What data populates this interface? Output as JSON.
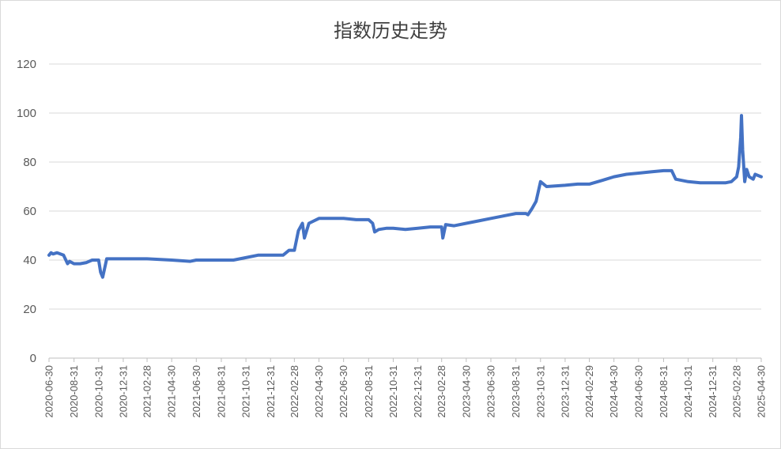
{
  "chart_data": {
    "type": "line",
    "title": "指数历史走势",
    "ylim": [
      0,
      120
    ],
    "yticks": [
      0,
      20,
      40,
      60,
      80,
      100,
      120
    ],
    "xlim": [
      "2020-06-30",
      "2025-04-30"
    ],
    "xticks": [
      "2020-06-30",
      "2020-08-31",
      "2020-10-31",
      "2020-12-31",
      "2021-02-28",
      "2021-04-30",
      "2021-06-30",
      "2021-08-31",
      "2021-10-31",
      "2021-12-31",
      "2022-02-28",
      "2022-04-30",
      "2022-06-30",
      "2022-08-31",
      "2022-10-31",
      "2022-12-31",
      "2023-02-28",
      "2023-04-30",
      "2023-06-30",
      "2023-08-31",
      "2023-10-31",
      "2023-12-31",
      "2024-02-29",
      "2024-04-30",
      "2024-06-30",
      "2024-08-31",
      "2024-10-31",
      "2024-12-31",
      "2025-02-28",
      "2025-04-30"
    ],
    "grid": true,
    "legend": "none",
    "color": "#4472c4",
    "series": [
      {
        "x": [
          "2020-06-30",
          "2020-07-05",
          "2020-07-10",
          "2020-07-20",
          "2020-08-05",
          "2020-08-15",
          "2020-08-20",
          "2020-08-31",
          "2020-09-15",
          "2020-10-01",
          "2020-10-15",
          "2020-10-31",
          "2020-11-05",
          "2020-11-10",
          "2020-11-20",
          "2020-12-31",
          "2021-01-31",
          "2021-02-28",
          "2021-04-30",
          "2021-06-15",
          "2021-06-30",
          "2021-08-31",
          "2021-09-30",
          "2021-10-31",
          "2021-11-30",
          "2021-12-31",
          "2022-01-31",
          "2022-02-15",
          "2022-02-28",
          "2022-03-10",
          "2022-03-20",
          "2022-03-25",
          "2022-04-05",
          "2022-04-30",
          "2022-05-20",
          "2022-06-30",
          "2022-07-31",
          "2022-08-31",
          "2022-09-10",
          "2022-09-15",
          "2022-09-25",
          "2022-10-15",
          "2022-10-31",
          "2022-11-30",
          "2022-12-31",
          "2023-01-31",
          "2023-02-28",
          "2023-03-03",
          "2023-03-10",
          "2023-03-31",
          "2023-04-30",
          "2023-05-31",
          "2023-06-30",
          "2023-07-31",
          "2023-08-31",
          "2023-09-25",
          "2023-09-30",
          "2023-10-10",
          "2023-10-20",
          "2023-10-31",
          "2023-11-15",
          "2023-12-31",
          "2024-01-31",
          "2024-02-29",
          "2024-03-31",
          "2024-04-30",
          "2024-05-31",
          "2024-06-30",
          "2024-07-31",
          "2024-08-31",
          "2024-09-20",
          "2024-09-30",
          "2024-10-31",
          "2024-11-30",
          "2024-12-31",
          "2025-01-31",
          "2025-02-15",
          "2025-02-28",
          "2025-03-05",
          "2025-03-10",
          "2025-03-12",
          "2025-03-15",
          "2025-03-20",
          "2025-03-25",
          "2025-03-31",
          "2025-04-10",
          "2025-04-15",
          "2025-04-30"
        ],
        "y": [
          42,
          43,
          42.5,
          43,
          42,
          38.5,
          39.5,
          38.5,
          38.5,
          39,
          40,
          40,
          35,
          33,
          40.5,
          40.5,
          40.5,
          40.5,
          40,
          39.5,
          40,
          40,
          40,
          41,
          42,
          42,
          42,
          44,
          44,
          52,
          55,
          49,
          55,
          57,
          57,
          57,
          56.5,
          56.5,
          55,
          51.5,
          52.5,
          53,
          53,
          52.5,
          53,
          53.5,
          53.5,
          49,
          54.5,
          54,
          55,
          56,
          57,
          58,
          59,
          59,
          58.5,
          61,
          64,
          72,
          70,
          70.5,
          71,
          71,
          72.5,
          74,
          75,
          75.5,
          76,
          76.5,
          76.5,
          73,
          72,
          71.5,
          71.5,
          71.5,
          72,
          74,
          78,
          90,
          99,
          85,
          72,
          77,
          74,
          73,
          75,
          74
        ]
      }
    ]
  }
}
